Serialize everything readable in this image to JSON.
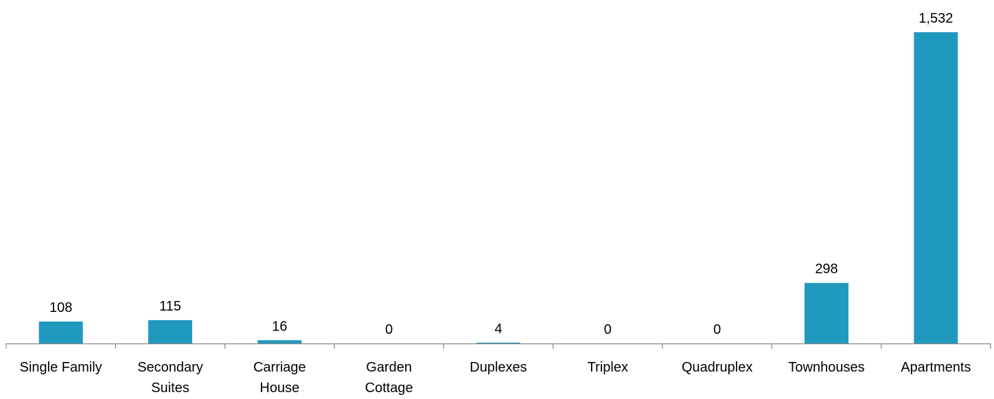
{
  "chart_data": {
    "type": "bar",
    "categories": [
      "Single Family",
      "Secondary Suites",
      "Carriage House",
      "Garden Cottage",
      "Duplexes",
      "Triplex",
      "Quadruplex",
      "Townhouses",
      "Apartments"
    ],
    "category_label_lines": [
      [
        "Single Family"
      ],
      [
        "Secondary",
        "Suites"
      ],
      [
        "Carriage",
        "House"
      ],
      [
        "Garden",
        "Cottage"
      ],
      [
        "Duplexes"
      ],
      [
        "Triplex"
      ],
      [
        "Quadruplex"
      ],
      [
        "Townhouses"
      ],
      [
        "Apartments"
      ]
    ],
    "values": [
      108,
      115,
      16,
      0,
      4,
      0,
      0,
      298,
      1532
    ],
    "data_labels": [
      "108",
      "115",
      "16",
      "0",
      "4",
      "0",
      "0",
      "298",
      "1,532"
    ],
    "ylim": [
      0,
      1532
    ],
    "bar_color": "#2199BE",
    "axis_color": "#868686",
    "grid": false,
    "legend": "none"
  }
}
